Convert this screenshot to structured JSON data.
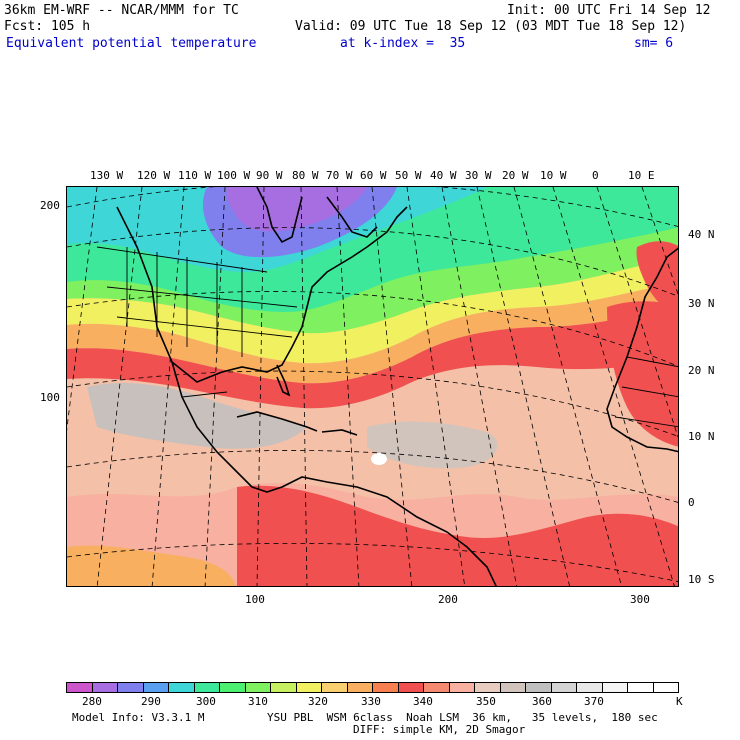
{
  "header": {
    "model_line": "36km EM-WRF -- NCAR/MMM for TC",
    "init_line": "Init: 00 UTC Fri 14 Sep 12",
    "fcst_line": "Fcst: 105 h",
    "valid_line": "Valid: 09 UTC Tue 18 Sep 12 (03 MDT Tue 18 Sep 12)",
    "field_name": "Equivalent potential temperature",
    "level": "at k-index =  35",
    "smoothing": "sm= 6"
  },
  "map": {
    "top_longitude_labels": [
      "130 W",
      "120 W",
      "110 W",
      "100 W",
      "90 W",
      "80 W",
      "70 W",
      "60 W",
      "50 W",
      "40 W",
      "30 W",
      "20 W",
      "10 W",
      "0",
      "10 E"
    ],
    "right_latitude_labels": [
      "40 N",
      "30 N",
      "20 N",
      "10 N",
      "0",
      "10 S"
    ],
    "left_grid_labels": [
      "200",
      "100"
    ],
    "bottom_grid_labels": [
      "100",
      "200",
      "300"
    ]
  },
  "colorbar": {
    "labels": [
      "280",
      "290",
      "300",
      "310",
      "320",
      "330",
      "340",
      "350",
      "360",
      "370"
    ],
    "unit": "K",
    "colors": [
      "#cc55cc",
      "#a66ee0",
      "#7f7fee",
      "#5aa0f0",
      "#3ed6d6",
      "#3ee89a",
      "#4cf070",
      "#7ff060",
      "#c6f060",
      "#f0f060",
      "#f8d070",
      "#f8b060",
      "#f88050",
      "#f05050",
      "#f48870",
      "#f8b0a0",
      "#e8ccc0",
      "#d0c4bc",
      "#c0c0c0",
      "#d4d4d4",
      "#e8e8e8",
      "#f4f4f4",
      "#ffffff",
      "#ffffff"
    ]
  },
  "footer": {
    "model_info": "Model Info: V3.3.1 M",
    "physics": "YSU PBL  WSM 6class  Noah LSM  36 km,   35 levels,  180 sec",
    "diffusion": "DIFF: simple KM, 2D Smagor"
  }
}
